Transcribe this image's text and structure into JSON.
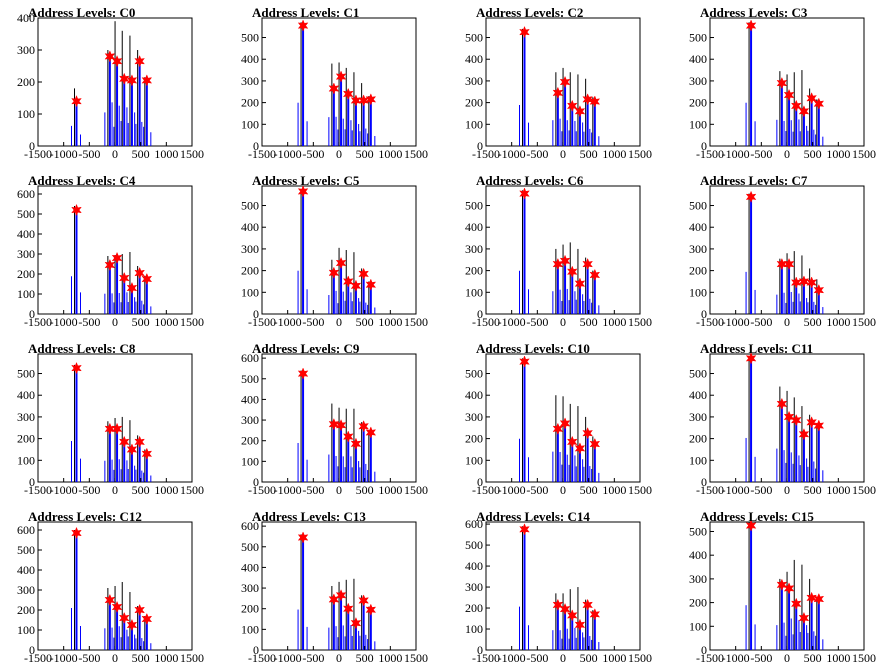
{
  "chart_data": [
    {
      "type": "bar",
      "title": "Address Levels: C0",
      "xlim": [
        -1500,
        1500
      ],
      "ylim": [
        0,
        400
      ],
      "yticks": [
        0,
        100,
        200,
        300,
        400
      ],
      "xticks": [
        -1500,
        -1000,
        -500,
        0,
        500,
        1000,
        1500
      ],
      "xticklabels": [
        "-1500",
        "-1000",
        "-500",
        "0",
        "500",
        "1000",
        "1500"
      ],
      "peaks": [
        {
          "x": -750,
          "y": 140,
          "h": 180
        },
        {
          "x": -100,
          "y": 280,
          "h": 300
        },
        {
          "x": 40,
          "y": 265,
          "h": 390
        },
        {
          "x": 180,
          "y": 210,
          "h": 360
        },
        {
          "x": 330,
          "y": 205,
          "h": 345
        },
        {
          "x": 480,
          "y": 265,
          "h": 300
        },
        {
          "x": 620,
          "y": 205,
          "h": 215
        }
      ]
    },
    {
      "type": "bar",
      "title": "Address Levels: C1",
      "xlim": [
        -1500,
        1500
      ],
      "ylim": [
        0,
        590
      ],
      "yticks": [
        0,
        100,
        200,
        300,
        400,
        500
      ],
      "xticks": [
        -1500,
        -1000,
        -500,
        0,
        500,
        1000,
        1500
      ],
      "xticklabels": [
        "-1500",
        "-1000",
        "-500",
        "0",
        "500",
        "1000",
        "1500"
      ],
      "peaks": [
        {
          "x": -700,
          "y": 555,
          "h": 570
        },
        {
          "x": -100,
          "y": 265,
          "h": 380
        },
        {
          "x": 40,
          "y": 320,
          "h": 385
        },
        {
          "x": 180,
          "y": 240,
          "h": 360
        },
        {
          "x": 330,
          "y": 210,
          "h": 340
        },
        {
          "x": 480,
          "y": 210,
          "h": 290
        },
        {
          "x": 620,
          "y": 215,
          "h": 230
        }
      ]
    },
    {
      "type": "bar",
      "title": "Address Levels: C2",
      "xlim": [
        -1500,
        1500
      ],
      "ylim": [
        0,
        590
      ],
      "yticks": [
        0,
        100,
        200,
        300,
        400,
        500
      ],
      "xticks": [
        -1500,
        -1000,
        -500,
        0,
        500,
        1000,
        1500
      ],
      "xticklabels": [
        "-1500",
        "-1000",
        "-500",
        "0",
        "500",
        "1000",
        "1500"
      ],
      "peaks": [
        {
          "x": -750,
          "y": 525,
          "h": 540
        },
        {
          "x": -100,
          "y": 245,
          "h": 340
        },
        {
          "x": 40,
          "y": 295,
          "h": 360
        },
        {
          "x": 180,
          "y": 185,
          "h": 340
        },
        {
          "x": 330,
          "y": 160,
          "h": 330
        },
        {
          "x": 480,
          "y": 215,
          "h": 310
        },
        {
          "x": 620,
          "y": 205,
          "h": 225
        }
      ]
    },
    {
      "type": "bar",
      "title": "Address Levels: C3",
      "xlim": [
        -1500,
        1500
      ],
      "ylim": [
        0,
        590
      ],
      "yticks": [
        0,
        100,
        200,
        300,
        400,
        500
      ],
      "xticks": [
        -1500,
        -1000,
        -500,
        0,
        500,
        1000,
        1500
      ],
      "xticklabels": [
        "-1500",
        "-1000",
        "-500",
        "0",
        "500",
        "1000",
        "1500"
      ],
      "peaks": [
        {
          "x": -700,
          "y": 555,
          "h": 570
        },
        {
          "x": -100,
          "y": 290,
          "h": 345
        },
        {
          "x": 40,
          "y": 235,
          "h": 330
        },
        {
          "x": 180,
          "y": 185,
          "h": 340
        },
        {
          "x": 330,
          "y": 160,
          "h": 350
        },
        {
          "x": 480,
          "y": 220,
          "h": 265
        },
        {
          "x": 620,
          "y": 195,
          "h": 215
        }
      ]
    },
    {
      "type": "bar",
      "title": "Address Levels: C4",
      "xlim": [
        -1500,
        1500
      ],
      "ylim": [
        0,
        640
      ],
      "yticks": [
        0,
        100,
        200,
        300,
        400,
        500,
        600
      ],
      "xticks": [
        -1500,
        -1000,
        -500,
        0,
        500,
        1000,
        1500
      ],
      "xticklabels": [
        "-1500",
        "-1000",
        "-500",
        "0",
        "500",
        "1000",
        "1500"
      ],
      "peaks": [
        {
          "x": -750,
          "y": 520,
          "h": 540
        },
        {
          "x": -100,
          "y": 245,
          "h": 290
        },
        {
          "x": 40,
          "y": 280,
          "h": 295
        },
        {
          "x": 180,
          "y": 180,
          "h": 300
        },
        {
          "x": 330,
          "y": 130,
          "h": 310
        },
        {
          "x": 480,
          "y": 205,
          "h": 240
        },
        {
          "x": 620,
          "y": 175,
          "h": 190
        }
      ]
    },
    {
      "type": "bar",
      "title": "Address Levels: C5",
      "xlim": [
        -1500,
        1500
      ],
      "ylim": [
        0,
        590
      ],
      "yticks": [
        0,
        100,
        200,
        300,
        400,
        500
      ],
      "xticks": [
        -1500,
        -1000,
        -500,
        0,
        500,
        1000,
        1500
      ],
      "xticklabels": [
        "-1500",
        "-1000",
        "-500",
        "0",
        "500",
        "1000",
        "1500"
      ],
      "peaks": [
        {
          "x": -700,
          "y": 565,
          "h": 570
        },
        {
          "x": -100,
          "y": 190,
          "h": 250
        },
        {
          "x": 40,
          "y": 235,
          "h": 305
        },
        {
          "x": 180,
          "y": 150,
          "h": 295
        },
        {
          "x": 330,
          "y": 130,
          "h": 285
        },
        {
          "x": 480,
          "y": 185,
          "h": 210
        },
        {
          "x": 620,
          "y": 135,
          "h": 150
        }
      ]
    },
    {
      "type": "bar",
      "title": "Address Levels: C6",
      "xlim": [
        -1500,
        1500
      ],
      "ylim": [
        0,
        590
      ],
      "yticks": [
        0,
        100,
        200,
        300,
        400,
        500
      ],
      "xticks": [
        -1500,
        -1000,
        -500,
        0,
        500,
        1000,
        1500
      ],
      "xticklabels": [
        "-1500",
        "-1000",
        "-500",
        "0",
        "500",
        "1000",
        "1500"
      ],
      "peaks": [
        {
          "x": -750,
          "y": 555,
          "h": 570
        },
        {
          "x": -100,
          "y": 230,
          "h": 300
        },
        {
          "x": 40,
          "y": 245,
          "h": 320
        },
        {
          "x": 180,
          "y": 195,
          "h": 330
        },
        {
          "x": 330,
          "y": 140,
          "h": 300
        },
        {
          "x": 480,
          "y": 230,
          "h": 260
        },
        {
          "x": 620,
          "y": 180,
          "h": 200
        }
      ]
    },
    {
      "type": "bar",
      "title": "Address Levels: C7",
      "xlim": [
        -1500,
        1500
      ],
      "ylim": [
        0,
        590
      ],
      "yticks": [
        0,
        100,
        200,
        300,
        400,
        500
      ],
      "xticks": [
        -1500,
        -1000,
        -500,
        0,
        500,
        1000,
        1500
      ],
      "xticklabels": [
        "-1500",
        "-1000",
        "-500",
        "0",
        "500",
        "1000",
        "1500"
      ],
      "peaks": [
        {
          "x": -700,
          "y": 540,
          "h": 555
        },
        {
          "x": -100,
          "y": 230,
          "h": 255
        },
        {
          "x": 40,
          "y": 230,
          "h": 280
        },
        {
          "x": 180,
          "y": 145,
          "h": 290
        },
        {
          "x": 330,
          "y": 150,
          "h": 270
        },
        {
          "x": 480,
          "y": 145,
          "h": 210
        },
        {
          "x": 620,
          "y": 110,
          "h": 160
        }
      ]
    },
    {
      "type": "bar",
      "title": "Address Levels: C8",
      "xlim": [
        -1500,
        1500
      ],
      "ylim": [
        0,
        590
      ],
      "yticks": [
        0,
        100,
        200,
        300,
        400,
        500
      ],
      "xticks": [
        -1500,
        -1000,
        -500,
        0,
        500,
        1000,
        1500
      ],
      "xticklabels": [
        "-1500",
        "-1000",
        "-500",
        "0",
        "500",
        "1000",
        "1500"
      ],
      "peaks": [
        {
          "x": -750,
          "y": 525,
          "h": 540
        },
        {
          "x": -100,
          "y": 245,
          "h": 280
        },
        {
          "x": 40,
          "y": 245,
          "h": 295
        },
        {
          "x": 180,
          "y": 185,
          "h": 300
        },
        {
          "x": 330,
          "y": 150,
          "h": 285
        },
        {
          "x": 480,
          "y": 185,
          "h": 215
        },
        {
          "x": 620,
          "y": 130,
          "h": 150
        }
      ]
    },
    {
      "type": "bar",
      "title": "Address Levels: C9",
      "xlim": [
        -1500,
        1500
      ],
      "ylim": [
        0,
        620
      ],
      "yticks": [
        0,
        100,
        200,
        300,
        400,
        500,
        600
      ],
      "xticks": [
        -1500,
        -1000,
        -500,
        0,
        500,
        1000,
        1500
      ],
      "xticklabels": [
        "-1500",
        "-1000",
        "-500",
        "0",
        "500",
        "1000",
        "1500"
      ],
      "peaks": [
        {
          "x": -700,
          "y": 525,
          "h": 540
        },
        {
          "x": -100,
          "y": 280,
          "h": 380
        },
        {
          "x": 40,
          "y": 275,
          "h": 360
        },
        {
          "x": 180,
          "y": 220,
          "h": 355
        },
        {
          "x": 330,
          "y": 185,
          "h": 355
        },
        {
          "x": 480,
          "y": 270,
          "h": 290
        },
        {
          "x": 620,
          "y": 240,
          "h": 250
        }
      ]
    },
    {
      "type": "bar",
      "title": "Address Levels: C10",
      "xlim": [
        -1500,
        1500
      ],
      "ylim": [
        0,
        590
      ],
      "yticks": [
        0,
        100,
        200,
        300,
        400,
        500
      ],
      "xticks": [
        -1500,
        -1000,
        -500,
        0,
        500,
        1000,
        1500
      ],
      "xticklabels": [
        "-1500",
        "-1000",
        "-500",
        "0",
        "500",
        "1000",
        "1500"
      ],
      "peaks": [
        {
          "x": -750,
          "y": 555,
          "h": 570
        },
        {
          "x": -100,
          "y": 245,
          "h": 400
        },
        {
          "x": 40,
          "y": 270,
          "h": 395
        },
        {
          "x": 180,
          "y": 185,
          "h": 360
        },
        {
          "x": 330,
          "y": 155,
          "h": 350
        },
        {
          "x": 480,
          "y": 225,
          "h": 300
        },
        {
          "x": 620,
          "y": 175,
          "h": 210
        }
      ]
    },
    {
      "type": "bar",
      "title": "Address Levels: C11",
      "xlim": [
        -1500,
        1500
      ],
      "ylim": [
        0,
        590
      ],
      "yticks": [
        0,
        100,
        200,
        300,
        400,
        500
      ],
      "xticks": [
        -1500,
        -1000,
        -500,
        0,
        500,
        1000,
        1500
      ],
      "xticklabels": [
        "-1500",
        "-1000",
        "-500",
        "0",
        "500",
        "1000",
        "1500"
      ],
      "peaks": [
        {
          "x": -700,
          "y": 570,
          "h": 580
        },
        {
          "x": -100,
          "y": 360,
          "h": 440
        },
        {
          "x": 40,
          "y": 300,
          "h": 420
        },
        {
          "x": 180,
          "y": 285,
          "h": 390
        },
        {
          "x": 330,
          "y": 220,
          "h": 350
        },
        {
          "x": 480,
          "y": 275,
          "h": 310
        },
        {
          "x": 620,
          "y": 260,
          "h": 270
        }
      ]
    },
    {
      "type": "bar",
      "title": "Address Levels: C12",
      "xlim": [
        -1500,
        1500
      ],
      "ylim": [
        0,
        640
      ],
      "yticks": [
        0,
        100,
        200,
        300,
        400,
        500,
        600
      ],
      "xticks": [
        -1500,
        -1000,
        -500,
        0,
        500,
        1000,
        1500
      ],
      "xticklabels": [
        "-1500",
        "-1000",
        "-500",
        "0",
        "500",
        "1000",
        "1500"
      ],
      "peaks": [
        {
          "x": -750,
          "y": 585,
          "h": 600
        },
        {
          "x": -100,
          "y": 250,
          "h": 310
        },
        {
          "x": 40,
          "y": 215,
          "h": 320
        },
        {
          "x": 180,
          "y": 160,
          "h": 340
        },
        {
          "x": 330,
          "y": 125,
          "h": 290
        },
        {
          "x": 480,
          "y": 200,
          "h": 220
        },
        {
          "x": 620,
          "y": 155,
          "h": 170
        }
      ]
    },
    {
      "type": "bar",
      "title": "Address Levels: C13",
      "xlim": [
        -1500,
        1500
      ],
      "ylim": [
        0,
        620
      ],
      "yticks": [
        0,
        100,
        200,
        300,
        400,
        500,
        600
      ],
      "xticks": [
        -1500,
        -1000,
        -500,
        0,
        500,
        1000,
        1500
      ],
      "xticklabels": [
        "-1500",
        "-1000",
        "-500",
        "0",
        "500",
        "1000",
        "1500"
      ],
      "peaks": [
        {
          "x": -700,
          "y": 545,
          "h": 560
        },
        {
          "x": -100,
          "y": 245,
          "h": 310
        },
        {
          "x": 40,
          "y": 265,
          "h": 330
        },
        {
          "x": 180,
          "y": 200,
          "h": 340
        },
        {
          "x": 330,
          "y": 130,
          "h": 345
        },
        {
          "x": 480,
          "y": 240,
          "h": 265
        },
        {
          "x": 620,
          "y": 195,
          "h": 210
        }
      ]
    },
    {
      "type": "bar",
      "title": "Address Levels: C14",
      "xlim": [
        -1500,
        1500
      ],
      "ylim": [
        0,
        610
      ],
      "yticks": [
        0,
        100,
        200,
        300,
        400,
        500,
        600
      ],
      "xticks": [
        -1500,
        -1000,
        -500,
        0,
        500,
        1000,
        1500
      ],
      "xticklabels": [
        "-1500",
        "-1000",
        "-500",
        "0",
        "500",
        "1000",
        "1500"
      ],
      "peaks": [
        {
          "x": -750,
          "y": 575,
          "h": 590
        },
        {
          "x": -100,
          "y": 215,
          "h": 270
        },
        {
          "x": 40,
          "y": 195,
          "h": 270
        },
        {
          "x": 180,
          "y": 165,
          "h": 290
        },
        {
          "x": 330,
          "y": 120,
          "h": 300
        },
        {
          "x": 480,
          "y": 215,
          "h": 240
        },
        {
          "x": 620,
          "y": 170,
          "h": 190
        }
      ]
    },
    {
      "type": "bar",
      "title": "Address Levels: C15",
      "xlim": [
        -1500,
        1500
      ],
      "ylim": [
        0,
        540
      ],
      "yticks": [
        0,
        100,
        200,
        300,
        400,
        500
      ],
      "xticks": [
        -1500,
        -1000,
        -500,
        0,
        500,
        1000,
        1500
      ],
      "xticklabels": [
        "-1500",
        "-1000",
        "-500",
        "0",
        "500",
        "1000",
        "1500"
      ],
      "peaks": [
        {
          "x": -700,
          "y": 525,
          "h": 540
        },
        {
          "x": -100,
          "y": 275,
          "h": 300
        },
        {
          "x": 40,
          "y": 260,
          "h": 330
        },
        {
          "x": 180,
          "y": 195,
          "h": 380
        },
        {
          "x": 330,
          "y": 135,
          "h": 360
        },
        {
          "x": 480,
          "y": 220,
          "h": 300
        },
        {
          "x": 620,
          "y": 215,
          "h": 225
        }
      ]
    }
  ],
  "colors": {
    "bars": "#0000ff",
    "outline": "#000000",
    "marker": "#ff0000",
    "axis": "#000000",
    "background": "#ffffff"
  }
}
